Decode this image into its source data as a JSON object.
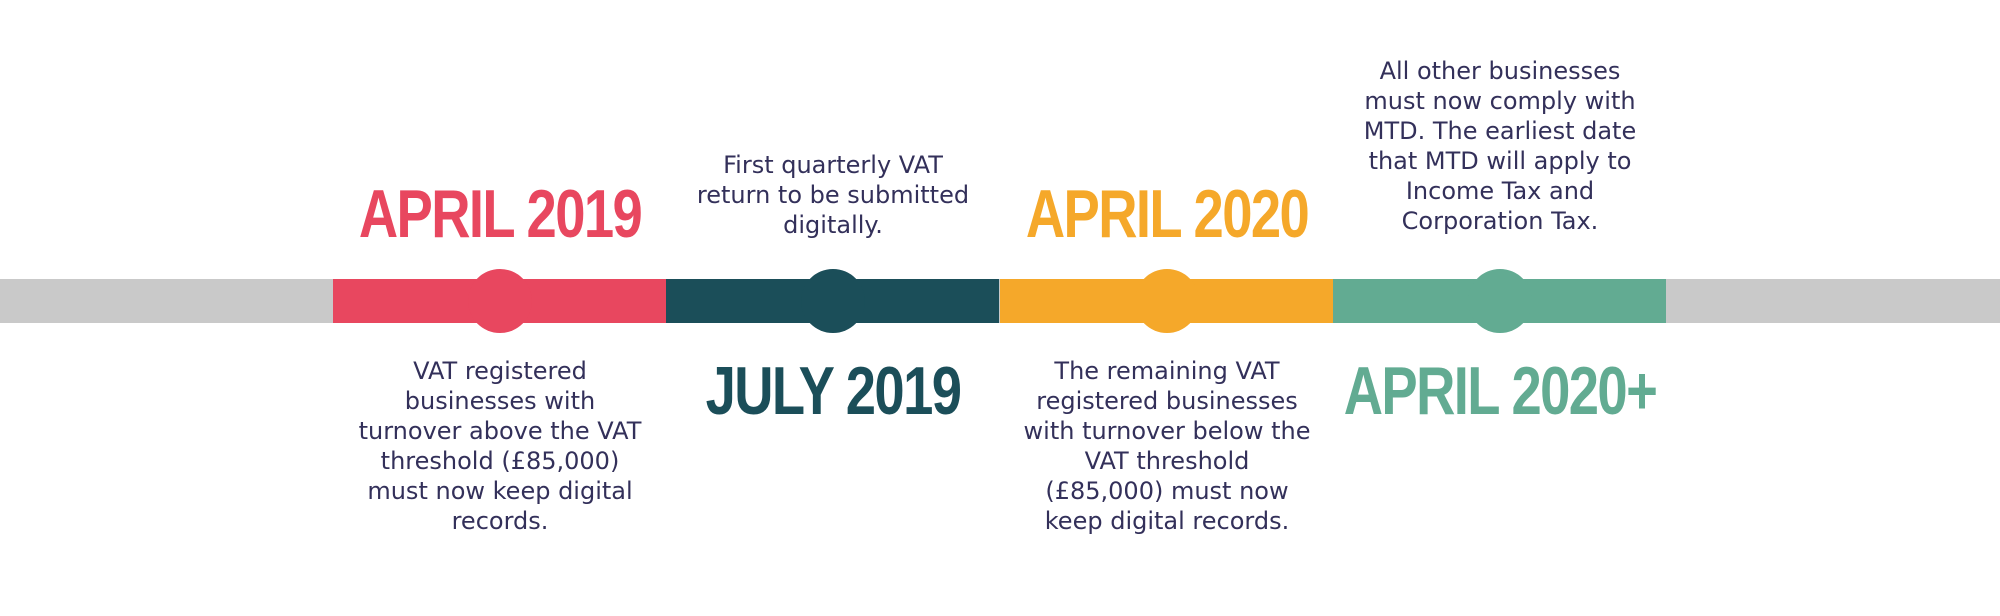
{
  "timeline": {
    "track_color": "#c9c9c9",
    "milestones": [
      {
        "date": "APRIL 2019",
        "color": "#e8475f",
        "text": "VAT registered businesses with turnover above the VAT threshold (£85,000) must now keep digital records."
      },
      {
        "date": "JULY 2019",
        "color": "#1b4e59",
        "text": "First quarterly VAT return to be submitted digitally."
      },
      {
        "date": "APRIL 2020",
        "color": "#f5a82a",
        "text": "The remaining VAT registered businesses with turnover below the VAT threshold (£85,000) must now keep digital records."
      },
      {
        "date": "APRIL 2020+",
        "color": "#62ab92",
        "text": "All other businesses must now comply with MTD. The earliest date that MTD will apply to Income Tax and Corporation Tax."
      }
    ]
  }
}
